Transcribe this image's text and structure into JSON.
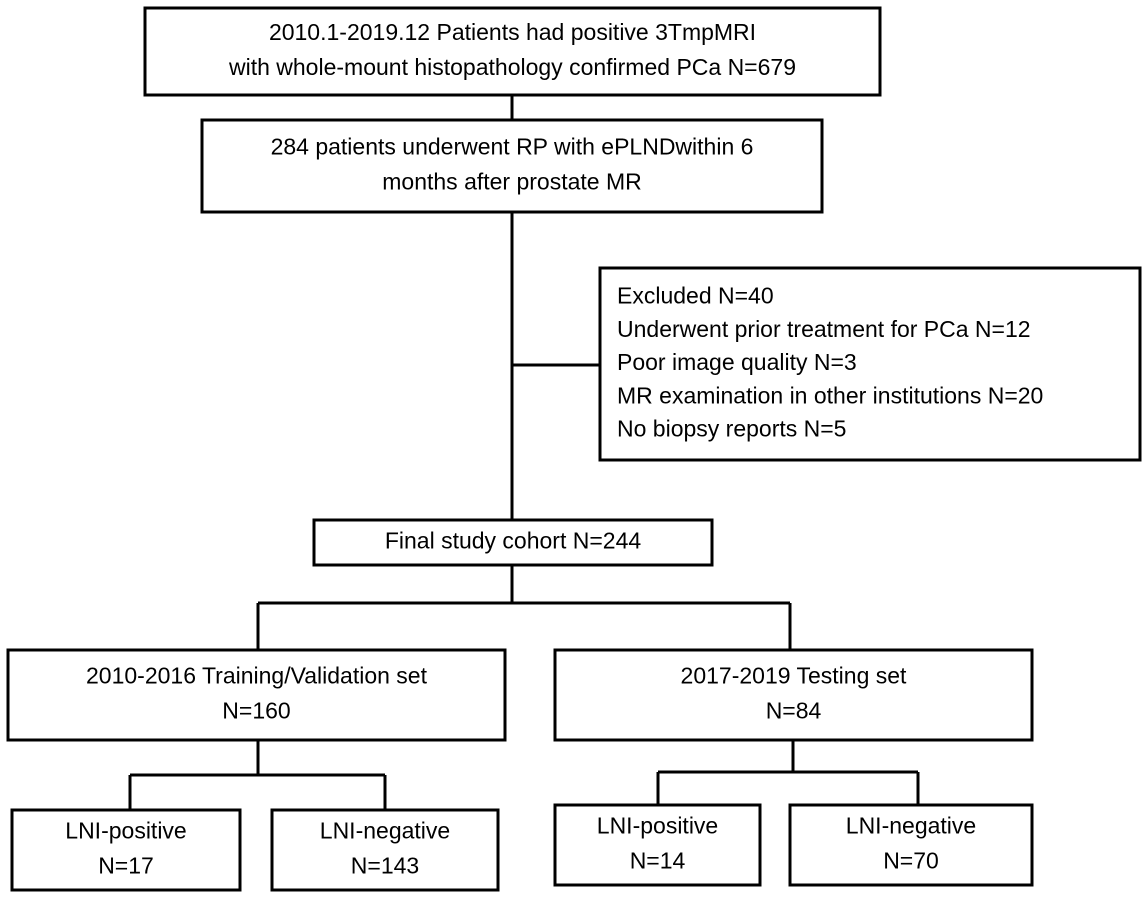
{
  "nodes": [
    {
      "lines": [
        "2010.1-2019.12 Patients had positive 3TmpMRI",
        "with whole-mount histopathology confirmed PCa  N=679"
      ]
    },
    {
      "lines": [
        "284 patients underwent  RP with ePLNDwithin 6",
        "months after prostate MR"
      ]
    },
    {
      "lines": [
        "Excluded N=40",
        "Underwent prior treatment for PCa N=12",
        "Poor image quality N=3",
        "MR examination in other institutions N=20",
        "No biopsy reports N=5"
      ]
    },
    {
      "lines": [
        "Final study cohort N=244"
      ]
    },
    {
      "lines": [
        "2010-2016 Training/Validation set",
        "N=160"
      ]
    },
    {
      "lines": [
        "2017-2019 Testing set",
        "N=84"
      ]
    },
    {
      "lines": [
        "LNI-positive",
        "N=17"
      ]
    },
    {
      "lines": [
        "LNI-negative",
        "N=143"
      ]
    },
    {
      "lines": [
        "LNI-positive",
        "N=14"
      ]
    },
    {
      "lines": [
        "LNI-negative",
        "N=70"
      ]
    }
  ]
}
